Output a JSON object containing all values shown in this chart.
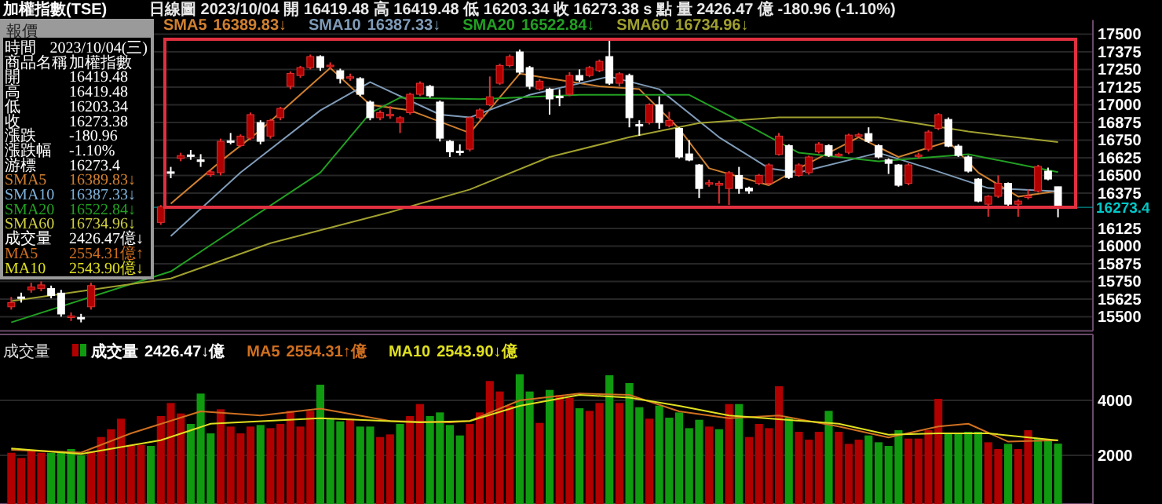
{
  "chart_data": [
    {
      "type": "candlestick",
      "title": "加權指數(TSE)",
      "subtitle": "日線圖  2023/10/04  開 16419.48  高 16419.48  低 16203.34  收 16273.38  s 點  量 2426.47 億  -180.96 (-1.10%)",
      "categories": [
        null,
        null,
        null,
        null,
        null,
        null,
        null,
        null,
        null,
        null,
        null,
        null,
        null,
        null,
        null,
        null,
        null,
        null,
        null,
        null,
        null,
        null,
        null,
        null,
        null,
        null,
        null,
        null,
        null,
        null,
        null,
        null,
        null,
        null,
        null,
        null,
        null,
        null,
        null,
        null,
        null,
        null,
        null,
        null,
        null,
        null,
        null,
        null,
        null,
        null,
        null,
        null,
        null,
        null,
        null,
        null,
        null,
        null,
        null,
        null,
        null,
        null,
        null,
        null,
        null,
        null,
        null,
        null,
        null,
        null,
        null,
        null,
        null,
        null,
        null,
        null,
        null,
        null,
        null,
        null,
        null,
        null,
        null,
        null,
        null,
        null,
        null,
        null,
        null,
        null,
        null,
        null,
        null,
        null,
        null,
        null,
        null,
        null,
        null,
        null,
        null,
        null,
        null,
        null,
        null,
        null
      ],
      "ohlc": [
        [
          15570,
          15640,
          15550,
          15600
        ],
        [
          15640,
          15670,
          15600,
          15630
        ],
        [
          15690,
          15740,
          15670,
          15710
        ],
        [
          15700,
          15750,
          15680,
          15725
        ],
        [
          15700,
          15720,
          15630,
          15650
        ],
        [
          15667,
          15690,
          15500,
          15519
        ],
        [
          15495,
          15530,
          15470,
          15505
        ],
        [
          15495,
          15520,
          15460,
          15490
        ],
        [
          15570,
          15740,
          15550,
          15720
        ],
        null,
        null,
        null,
        null,
        null,
        null,
        [
          16167,
          16290,
          16150,
          16278
        ],
        [
          16525,
          16560,
          16480,
          16515
        ],
        [
          16620,
          16660,
          16600,
          16640
        ],
        [
          16645,
          16680,
          16610,
          16638
        ],
        [
          16610,
          16650,
          16560,
          16598
        ],
        [
          16505,
          16540,
          16490,
          16525
        ],
        [
          16519,
          16760,
          16500,
          16741
        ],
        [
          16745,
          16800,
          16720,
          16740
        ],
        [
          16711,
          16790,
          16700,
          16778
        ],
        [
          16763,
          16945,
          16750,
          16930
        ],
        [
          16874,
          16890,
          16720,
          16741
        ],
        [
          16778,
          16900,
          16760,
          16889
        ],
        [
          16908,
          16985,
          16890,
          16974
        ],
        [
          17130,
          17235,
          17110,
          17222
        ],
        [
          17207,
          17275,
          17190,
          17263
        ],
        [
          17263,
          17355,
          17250,
          17341
        ],
        [
          17341,
          17350,
          17240,
          17263
        ],
        [
          17270,
          17300,
          17250,
          17280
        ],
        [
          17241,
          17255,
          17150,
          17185
        ],
        [
          17190,
          17220,
          17170,
          17198
        ],
        [
          17185,
          17195,
          17060,
          17074
        ],
        [
          17019,
          17030,
          16890,
          16908
        ],
        [
          16908,
          16960,
          16890,
          16944
        ],
        [
          16925,
          16990,
          16900,
          16932
        ],
        [
          16874,
          16920,
          16800,
          16908
        ],
        [
          16944,
          17085,
          16930,
          17074
        ],
        [
          17074,
          17165,
          17060,
          17152
        ],
        [
          17130,
          17140,
          17050,
          17063
        ],
        [
          17019,
          17030,
          16740,
          16763
        ],
        [
          16741,
          16750,
          16630,
          16667
        ],
        [
          16672,
          16720,
          16640,
          16665
        ],
        [
          16685,
          16920,
          16670,
          16908
        ],
        [
          16908,
          16975,
          16895,
          16963
        ],
        [
          17000,
          17200,
          16990,
          17056
        ],
        [
          17152,
          17290,
          17140,
          17278
        ],
        [
          17278,
          17355,
          17265,
          17341
        ],
        [
          17374,
          17390,
          17215,
          17230
        ],
        [
          17263,
          17275,
          17110,
          17130
        ],
        [
          17111,
          17180,
          17100,
          17167
        ],
        [
          17111,
          17120,
          16930,
          17041
        ],
        [
          17060,
          17110,
          16990,
          17054
        ],
        [
          17074,
          17230,
          17060,
          17207
        ],
        [
          17207,
          17250,
          17160,
          17174
        ],
        [
          17207,
          17275,
          17195,
          17263
        ],
        [
          17241,
          17320,
          17230,
          17307
        ],
        [
          17341,
          17460,
          17140,
          17152
        ],
        [
          17152,
          17230,
          17130,
          17219
        ],
        [
          17207,
          17220,
          16840,
          16908
        ],
        [
          16860,
          16890,
          16780,
          16850
        ],
        [
          16874,
          17010,
          16860,
          17000
        ],
        [
          17000,
          17060,
          16830,
          16874
        ],
        [
          16852,
          16950,
          16840,
          16889
        ],
        [
          16833,
          16840,
          16620,
          16630
        ],
        [
          16652,
          16750,
          16600,
          16608
        ],
        [
          16574,
          16580,
          16340,
          16407
        ],
        [
          16440,
          16470,
          16420,
          16448
        ],
        [
          16430,
          16460,
          16300,
          16444
        ],
        [
          16407,
          16530,
          16290,
          16519
        ],
        [
          16500,
          16560,
          16370,
          16407
        ],
        [
          16410,
          16420,
          16370,
          16390
        ],
        [
          16444,
          16510,
          16430,
          16500
        ],
        [
          16444,
          16585,
          16430,
          16574
        ],
        [
          16648,
          16800,
          16640,
          16778
        ],
        [
          16711,
          16720,
          16475,
          16485
        ],
        [
          16500,
          16585,
          16490,
          16574
        ],
        [
          16519,
          16640,
          16505,
          16630
        ],
        [
          16667,
          16735,
          16655,
          16722
        ],
        [
          16711,
          16720,
          16630,
          16641
        ],
        [
          16644,
          16660,
          16630,
          16650
        ],
        [
          16663,
          16795,
          16650,
          16785
        ],
        [
          16780,
          16800,
          16770,
          16787
        ],
        [
          16796,
          16840,
          16730,
          16741
        ],
        [
          16711,
          16720,
          16620,
          16630
        ],
        [
          16611,
          16620,
          16510,
          16585
        ],
        [
          16574,
          16580,
          16420,
          16430
        ],
        [
          16444,
          16585,
          16430,
          16574
        ],
        [
          16636,
          16660,
          16620,
          16645
        ],
        [
          16685,
          16820,
          16670,
          16807
        ],
        [
          16833,
          16940,
          16820,
          16930
        ],
        [
          16896,
          16910,
          16700,
          16707
        ],
        [
          16707,
          16720,
          16630,
          16641
        ],
        [
          16630,
          16640,
          16520,
          16530
        ],
        [
          16474,
          16480,
          16310,
          16318
        ],
        [
          16296,
          16360,
          16207,
          16352
        ],
        [
          16352,
          16500,
          16340,
          16444
        ],
        [
          16444,
          16450,
          16285,
          16296
        ],
        [
          16296,
          16330,
          16207,
          16318
        ],
        [
          16345,
          16400,
          16330,
          16355
        ],
        [
          16389,
          16575,
          16380,
          16563
        ],
        [
          16530,
          16555,
          16465,
          16474
        ],
        [
          16419.48,
          16419.48,
          16203.34,
          16273.38
        ]
      ],
      "series": [
        {
          "name": "SMA5",
          "type": "line",
          "color": "#d08030",
          "values": [
            null,
            null,
            null,
            null,
            null,
            null,
            null,
            null,
            null,
            null,
            null,
            null,
            null,
            null,
            null,
            null,
            16300,
            null,
            null,
            null,
            null,
            16600,
            null,
            null,
            null,
            16820,
            null,
            null,
            null,
            null,
            null,
            null,
            17260,
            null,
            null,
            null,
            17000,
            null,
            null,
            null,
            16960,
            null,
            null,
            null,
            null,
            null,
            16800,
            null,
            null,
            null,
            null,
            17220,
            null,
            null,
            null,
            null,
            null,
            null,
            null,
            17130,
            null,
            null,
            null,
            17110,
            null,
            null,
            null,
            16830,
            null,
            null,
            16550,
            null,
            null,
            null,
            null,
            null,
            16430,
            null,
            null,
            16550,
            null,
            null,
            null,
            null,
            null,
            16770,
            null,
            null,
            null,
            16630,
            null,
            null,
            null,
            null,
            16740,
            null,
            null,
            16520,
            null,
            null,
            null,
            16350,
            null,
            null,
            null,
            16389.83
          ]
        },
        {
          "name": "SMA10",
          "type": "line",
          "color": "#7f9bb8",
          "values": [
            null,
            null,
            null,
            null,
            null,
            null,
            null,
            null,
            null,
            null,
            null,
            null,
            null,
            null,
            null,
            null,
            16070,
            null,
            null,
            null,
            null,
            null,
            null,
            16520,
            null,
            null,
            null,
            null,
            null,
            null,
            null,
            16960,
            null,
            null,
            null,
            null,
            17160,
            null,
            null,
            null,
            null,
            null,
            null,
            16930,
            null,
            null,
            16910,
            null,
            null,
            null,
            null,
            null,
            17070,
            null,
            null,
            null,
            null,
            null,
            null,
            null,
            17200,
            null,
            null,
            null,
            null,
            17110,
            null,
            null,
            null,
            null,
            null,
            16770,
            null,
            null,
            null,
            null,
            16550,
            null,
            null,
            16520,
            null,
            null,
            null,
            null,
            null,
            null,
            null,
            16660,
            null,
            null,
            null,
            null,
            16550,
            null,
            null,
            null,
            null,
            null,
            16410,
            null,
            null,
            null,
            null,
            null,
            null,
            16387.33
          ]
        },
        {
          "name": "SMA20",
          "type": "line",
          "color": "#22a022",
          "values": [
            15460,
            null,
            null,
            null,
            null,
            null,
            null,
            null,
            null,
            null,
            null,
            null,
            null,
            null,
            null,
            null,
            15820,
            null,
            null,
            null,
            null,
            null,
            null,
            null,
            null,
            null,
            null,
            null,
            null,
            null,
            null,
            16520,
            null,
            null,
            null,
            null,
            16940,
            null,
            null,
            17050,
            null,
            null,
            null,
            null,
            null,
            null,
            null,
            17040,
            null,
            null,
            null,
            null,
            null,
            null,
            null,
            null,
            null,
            17070,
            null,
            null,
            null,
            null,
            null,
            null,
            null,
            null,
            null,
            null,
            17070,
            null,
            null,
            null,
            null,
            null,
            16850,
            null,
            null,
            null,
            null,
            16660,
            null,
            null,
            null,
            null,
            null,
            null,
            null,
            16600,
            null,
            null,
            null,
            null,
            null,
            null,
            null,
            null,
            16650,
            null,
            null,
            null,
            null,
            null,
            null,
            null,
            null,
            16522.84
          ]
        },
        {
          "name": "SMA60",
          "type": "line",
          "color": "#a0a030",
          "values": [
            15610,
            null,
            null,
            null,
            null,
            null,
            null,
            null,
            null,
            null,
            null,
            null,
            null,
            null,
            null,
            null,
            15770,
            null,
            null,
            null,
            null,
            null,
            null,
            null,
            null,
            null,
            16020,
            null,
            null,
            null,
            null,
            null,
            null,
            null,
            null,
            null,
            null,
            null,
            16240,
            null,
            null,
            null,
            null,
            null,
            null,
            null,
            16400,
            null,
            null,
            null,
            null,
            null,
            null,
            null,
            16630,
            null,
            null,
            null,
            null,
            null,
            null,
            null,
            16770,
            null,
            null,
            null,
            null,
            null,
            null,
            16870,
            null,
            null,
            null,
            null,
            null,
            null,
            null,
            16910,
            null,
            null,
            null,
            null,
            null,
            null,
            null,
            null,
            null,
            16910,
            null,
            null,
            null,
            null,
            null,
            null,
            null,
            null,
            16810,
            null,
            null,
            null,
            null,
            null,
            null,
            null,
            null,
            16734.96
          ]
        }
      ],
      "annotations": [
        "16389.83↓",
        "16387.33↓",
        "16522.84↓",
        "16734.96↓"
      ],
      "ylim": [
        15400,
        17600
      ],
      "yticks": [
        15500,
        15625,
        15750,
        15875,
        16000,
        16125,
        16375,
        16500,
        16625,
        16750,
        16875,
        17000,
        17125,
        17250,
        17375,
        17500
      ],
      "ref_lines": [
        {
          "axis": "y",
          "value": 16273.4,
          "label": "16273.4",
          "color": "#00c8c8"
        }
      ],
      "grid": "y",
      "legend": "top"
    },
    {
      "type": "bar",
      "title": "成交量",
      "categories": [
        null,
        null,
        null,
        null,
        null,
        null,
        null,
        null,
        null,
        null,
        null,
        null,
        null,
        null,
        null,
        null,
        null,
        null,
        null,
        null,
        null,
        null,
        null,
        null,
        null,
        null,
        null,
        null,
        null,
        null,
        null,
        null,
        null,
        null,
        null,
        null,
        null,
        null,
        null,
        null,
        null,
        null,
        null,
        null,
        null,
        null,
        null,
        null,
        null,
        null,
        null,
        null,
        null,
        null,
        null,
        null,
        null,
        null,
        null,
        null,
        null,
        null,
        null,
        null,
        null,
        null,
        null,
        null,
        null,
        null,
        null,
        null,
        null,
        null,
        null,
        null,
        null,
        null,
        null,
        null,
        null,
        null,
        null,
        null,
        null,
        null,
        null,
        null,
        null,
        null,
        null,
        null,
        null,
        null,
        null,
        null,
        null,
        null,
        null,
        null,
        null,
        null,
        null,
        null,
        null,
        null
      ],
      "series": [
        {
          "name": "成交量",
          "type": "bar",
          "values": [
            2095,
            1905,
            2152,
            2095,
            2095,
            2152,
            2229,
            2000,
            2152,
            2667,
            2952,
            3333,
            2381,
            2381,
            2343,
            3429,
            3905,
            3524,
            3143,
            4248,
            2800,
            3676,
            3048,
            2800,
            3048,
            3105,
            2990,
            3143,
            3619,
            3048,
            3619,
            4571,
            3333,
            3238,
            3333,
            3048,
            3048,
            2667,
            2762,
            3143,
            3429,
            3867,
            3429,
            3562,
            3105,
            2724,
            3143,
            3562,
            4705,
            4324,
            3810,
            4952,
            4324,
            3181,
            4381,
            4190,
            4095,
            3714,
            3619,
            3905,
            4914,
            3905,
            4629,
            3752,
            3333,
            3810,
            3371,
            3562,
            2990,
            3295,
            3048,
            2952,
            3867,
            3867,
            2667,
            3143,
            2990,
            4514,
            3371,
            2857,
            2571,
            2857,
            3619,
            2857,
            2419,
            2571,
            2724,
            2476,
            2343,
            2914,
            2610,
            2610,
            2914,
            4057,
            2800,
            2800,
            2857,
            2857,
            2476,
            2229,
            2419,
            2229,
            2914,
            2610,
            2571,
            2426.47
          ],
          "colors": [
            "#b00000",
            "#b00000",
            "#b00000",
            "#b00000",
            "#109a10",
            "#109a10",
            "#109a10",
            "#109a10",
            "#b00000",
            "#b00000",
            "#b00000",
            "#b00000",
            "#b00000",
            "#b00000",
            "#109a10",
            "#b00000",
            "#b00000",
            "#b00000",
            "#109a10",
            "#109a10",
            "#109a10",
            "#b00000",
            "#b00000",
            "#b00000",
            "#b00000",
            "#109a10",
            "#b00000",
            "#b00000",
            "#b00000",
            "#b00000",
            "#b00000",
            "#109a10",
            "#109a10",
            "#109a10",
            "#b00000",
            "#109a10",
            "#109a10",
            "#b00000",
            "#b00000",
            "#109a10",
            "#b00000",
            "#b00000",
            "#109a10",
            "#109a10",
            "#109a10",
            "#109a10",
            "#b00000",
            "#b00000",
            "#b00000",
            "#b00000",
            "#b00000",
            "#109a10",
            "#109a10",
            "#b00000",
            "#109a10",
            "#b00000",
            "#b00000",
            "#109a10",
            "#b00000",
            "#b00000",
            "#109a10",
            "#b00000",
            "#109a10",
            "#109a10",
            "#b00000",
            "#109a10",
            "#109a10",
            "#109a10",
            "#109a10",
            "#109a10",
            "#b00000",
            "#109a10",
            "#b00000",
            "#109a10",
            "#b00000",
            "#b00000",
            "#b00000",
            "#b00000",
            "#109a10",
            "#b00000",
            "#b00000",
            "#b00000",
            "#109a10",
            "#b00000",
            "#b00000",
            "#b00000",
            "#109a10",
            "#109a10",
            "#109a10",
            "#109a10",
            "#b00000",
            "#b00000",
            "#b00000",
            "#b00000",
            "#109a10",
            "#109a10",
            "#109a10",
            "#109a10",
            "#b00000",
            "#b00000",
            "#109a10",
            "#b00000",
            "#b00000",
            "#109a10",
            "#109a10",
            "#109a10"
          ]
        },
        {
          "name": "MA5",
          "type": "line",
          "color": "#d07020",
          "values": [
            2200,
            null,
            null,
            null,
            null,
            null,
            null,
            2100,
            null,
            null,
            null,
            null,
            2800,
            null,
            null,
            null,
            null,
            null,
            null,
            3600,
            null,
            null,
            null,
            null,
            null,
            3450,
            null,
            null,
            null,
            null,
            null,
            3700,
            null,
            null,
            null,
            null,
            null,
            null,
            3250,
            null,
            null,
            null,
            null,
            null,
            3200,
            null,
            3250,
            null,
            null,
            null,
            null,
            4000,
            null,
            null,
            null,
            null,
            null,
            4250,
            null,
            null,
            null,
            null,
            4200,
            null,
            null,
            null,
            null,
            3600,
            null,
            null,
            null,
            null,
            3350,
            null,
            null,
            null,
            null,
            3450,
            null,
            null,
            null,
            null,
            null,
            3050,
            null,
            null,
            null,
            null,
            2650,
            null,
            null,
            null,
            null,
            3050,
            null,
            null,
            3150,
            null,
            null,
            null,
            2500,
            null,
            null,
            null,
            null,
            2554.31
          ]
        },
        {
          "name": "MA10",
          "type": "line",
          "color": "#e0e020",
          "values": [
            2250,
            null,
            null,
            null,
            null,
            null,
            null,
            2050,
            null,
            null,
            null,
            null,
            null,
            null,
            null,
            2550,
            null,
            null,
            null,
            null,
            3150,
            null,
            null,
            null,
            null,
            null,
            null,
            null,
            null,
            null,
            null,
            3350,
            null,
            null,
            null,
            null,
            null,
            null,
            null,
            null,
            null,
            3200,
            null,
            null,
            null,
            null,
            3250,
            null,
            null,
            null,
            null,
            3800,
            null,
            null,
            null,
            null,
            null,
            4200,
            null,
            null,
            null,
            null,
            4100,
            null,
            null,
            null,
            null,
            3800,
            null,
            null,
            null,
            null,
            3450,
            null,
            null,
            null,
            null,
            null,
            null,
            null,
            null,
            null,
            null,
            3150,
            null,
            null,
            null,
            null,
            2750,
            null,
            null,
            null,
            null,
            2800,
            null,
            null,
            null,
            null,
            2800,
            null,
            null,
            null,
            null,
            null,
            null,
            2543.9
          ]
        }
      ],
      "annotations": [
        "2426.47↓億",
        "2554.31↑億",
        "2543.90↓億"
      ],
      "ylim": [
        230,
        6400
      ],
      "yticks": [
        2000,
        4000
      ],
      "grid": "y",
      "legend": "top left"
    },
    {
      "type": "other",
      "title": "報價",
      "annotations": [
        "時間",
        "2023/10/04(三)",
        "商品名稱",
        "加權指數",
        "開",
        "16419.48",
        "高",
        "16419.48",
        "低",
        "16203.34",
        "收",
        "16273.38",
        "漲跌",
        "-180.96",
        "漲跌幅",
        "-1.10%",
        "游標",
        "16273.4",
        "SMA5",
        "16389.83↓",
        "SMA10",
        "16387.33↓",
        "SMA20",
        "16522.84↓",
        "SMA60",
        "16734.96↓",
        "成交量",
        "2426.47億↓",
        "MA5",
        "2554.31億↑",
        "MA10",
        "2543.90億↓"
      ],
      "colors": [
        "#ffffff",
        "#ffffff",
        "#ffffff",
        "#ffffff",
        "#ffffff",
        "#ffffff",
        "#ffffff",
        "#ffffff",
        "#ffffff",
        "#d08030",
        "#7fb0d8",
        "#22a022",
        "#d0d040",
        "#ffffff",
        "#d07020",
        "#e0e020"
      ]
    }
  ]
}
